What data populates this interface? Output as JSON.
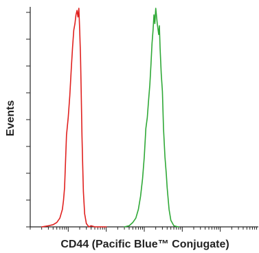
{
  "chart_data": {
    "type": "line",
    "title": "",
    "xlabel": "CD44 (Pacific Blue™ Conjugate)",
    "ylabel": "Events",
    "x_scale": "log",
    "xlim": [
      0.01,
      10000
    ],
    "ylim": [
      0,
      1
    ],
    "x_major_ticks": [
      0.1,
      1,
      10,
      100,
      1000
    ],
    "y_tick_count": 9,
    "grid": false,
    "legend": "none",
    "series": [
      {
        "color": "#e0201e",
        "x": [
          0.02,
          0.03,
          0.04,
          0.05,
          0.06,
          0.07,
          0.075,
          0.08,
          0.085,
          0.09,
          0.1,
          0.11,
          0.12,
          0.13,
          0.14,
          0.15,
          0.16,
          0.17,
          0.18,
          0.19,
          0.2,
          0.21,
          0.22,
          0.23,
          0.24,
          0.25,
          0.27,
          0.3,
          0.35,
          0.4,
          0.5,
          0.7,
          1
        ],
        "y": [
          0.0,
          0.005,
          0.01,
          0.02,
          0.04,
          0.08,
          0.12,
          0.18,
          0.3,
          0.42,
          0.5,
          0.6,
          0.72,
          0.82,
          0.9,
          0.93,
          0.97,
          0.99,
          0.96,
          1.0,
          0.9,
          0.78,
          0.6,
          0.42,
          0.28,
          0.16,
          0.06,
          0.015,
          0.0,
          0.005,
          0.0,
          0.0,
          0.0
        ]
      },
      {
        "color": "#2ea836",
        "x": [
          3,
          4,
          5,
          6,
          7,
          8,
          9,
          10,
          11,
          12,
          13,
          14,
          15,
          16,
          17,
          18,
          19,
          20,
          22,
          24,
          25,
          26,
          28,
          30,
          32,
          35,
          38,
          40,
          45,
          50,
          60,
          70,
          80
        ],
        "y": [
          0.0,
          0.005,
          0.02,
          0.04,
          0.08,
          0.14,
          0.22,
          0.32,
          0.45,
          0.5,
          0.58,
          0.65,
          0.74,
          0.84,
          0.9,
          0.97,
          0.93,
          1.0,
          0.93,
          0.88,
          0.92,
          0.82,
          0.7,
          0.62,
          0.45,
          0.32,
          0.24,
          0.18,
          0.08,
          0.03,
          0.005,
          0.002,
          0.0
        ]
      }
    ]
  }
}
